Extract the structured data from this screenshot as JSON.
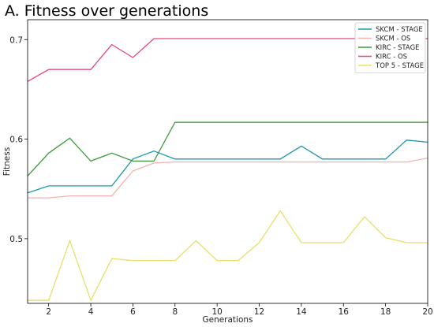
{
  "chart_data": {
    "type": "line",
    "title": "A. Fitness over generations",
    "xlabel": "Generations",
    "ylabel": "Fitness",
    "xlim": [
      1,
      20
    ],
    "ylim": [
      0.435,
      0.72
    ],
    "x_ticks": [
      2,
      4,
      6,
      8,
      10,
      12,
      14,
      16,
      18,
      20
    ],
    "y_ticks": [
      0.5,
      0.6,
      0.7
    ],
    "grid": false,
    "legend_position": "top-right",
    "x": [
      1,
      2,
      3,
      4,
      5,
      6,
      7,
      8,
      9,
      10,
      11,
      12,
      13,
      14,
      15,
      16,
      17,
      18,
      19,
      20
    ],
    "series": [
      {
        "name": "SKCM - STAGE",
        "color": "#1a98ad",
        "values": [
          0.546,
          0.553,
          0.553,
          0.553,
          0.553,
          0.58,
          0.588,
          0.58,
          0.58,
          0.58,
          0.58,
          0.58,
          0.58,
          0.593,
          0.58,
          0.58,
          0.58,
          0.58,
          0.599,
          0.597
        ]
      },
      {
        "name": "SKCM - OS",
        "color": "#f2b2ad",
        "values": [
          0.541,
          0.541,
          0.543,
          0.543,
          0.543,
          0.568,
          0.576,
          0.577,
          0.577,
          0.577,
          0.577,
          0.577,
          0.577,
          0.577,
          0.577,
          0.577,
          0.577,
          0.577,
          0.577,
          0.581
        ]
      },
      {
        "name": "KIRC - STAGE",
        "color": "#3b9a3b",
        "values": [
          0.563,
          0.586,
          0.601,
          0.578,
          0.586,
          0.578,
          0.578,
          0.617,
          0.617,
          0.617,
          0.617,
          0.617,
          0.617,
          0.617,
          0.617,
          0.617,
          0.617,
          0.617,
          0.617,
          0.617
        ]
      },
      {
        "name": "KIRC - OS",
        "color": "#e8467c",
        "values": [
          0.658,
          0.67,
          0.67,
          0.67,
          0.695,
          0.682,
          0.701,
          0.701,
          0.701,
          0.701,
          0.701,
          0.701,
          0.701,
          0.701,
          0.701,
          0.701,
          0.701,
          0.701,
          0.701,
          0.701
        ]
      },
      {
        "name": "TOP 5 - STAGE",
        "color": "#e8df6a",
        "values": [
          0.438,
          0.438,
          0.498,
          0.438,
          0.48,
          0.478,
          0.478,
          0.478,
          0.498,
          0.478,
          0.478,
          0.496,
          0.528,
          0.496,
          0.496,
          0.496,
          0.522,
          0.501,
          0.496,
          0.496
        ]
      }
    ]
  }
}
